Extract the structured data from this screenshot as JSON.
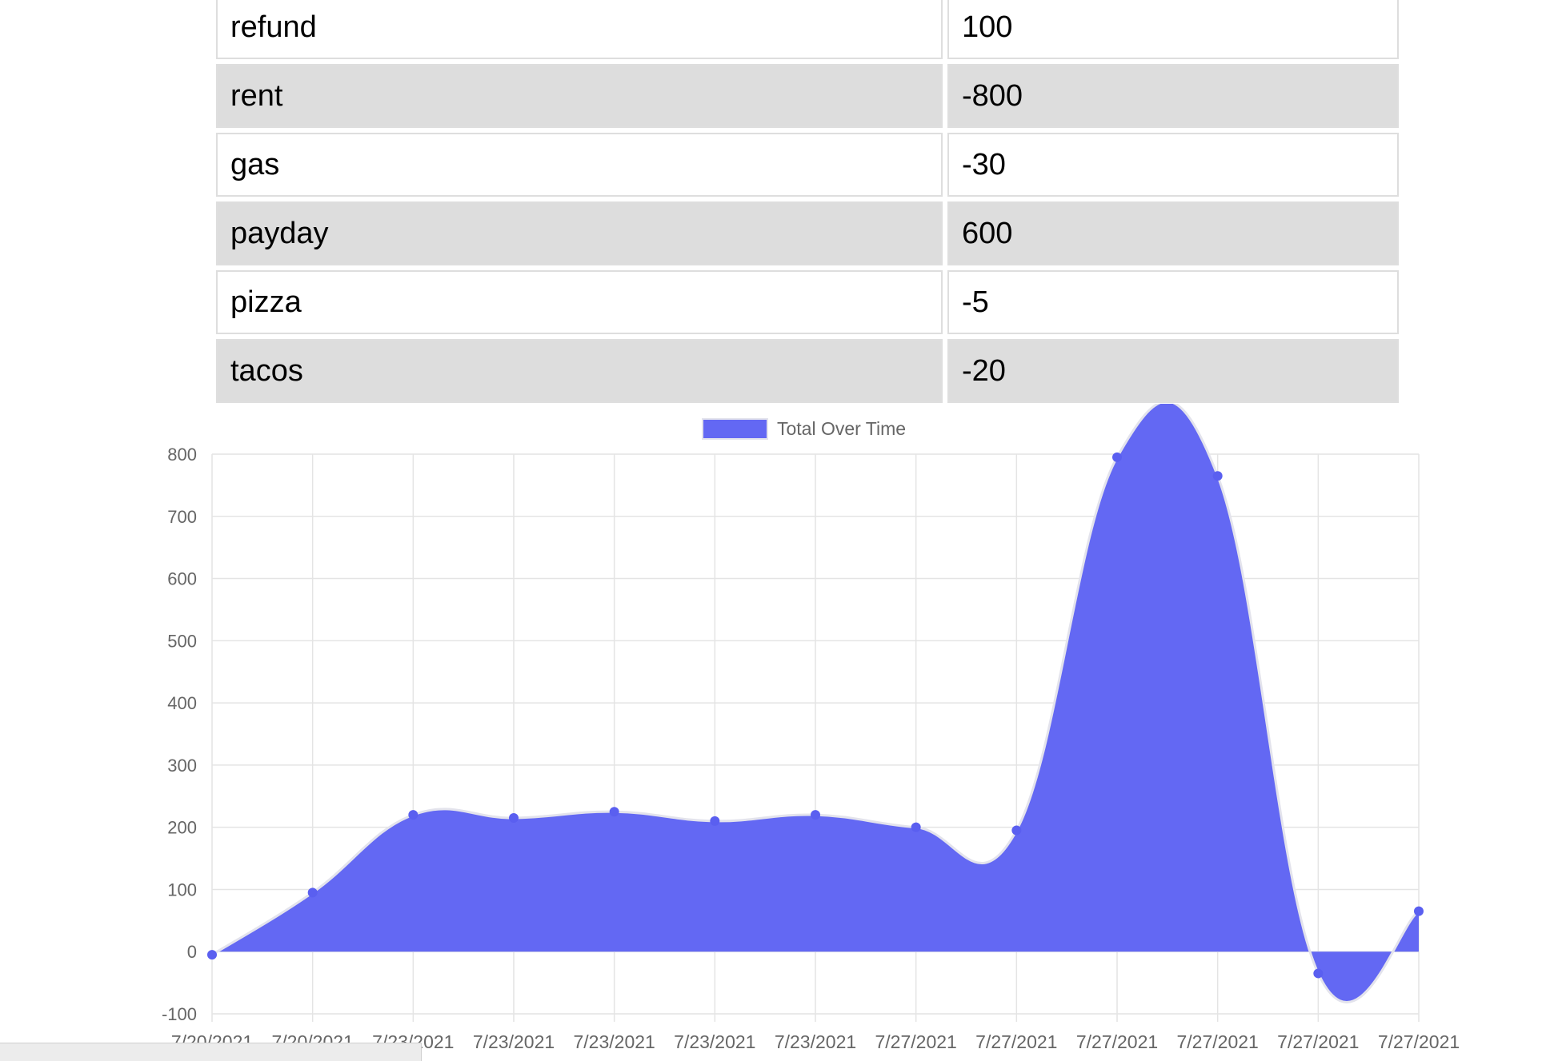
{
  "transactions": [
    {
      "name": "refund",
      "value": "100"
    },
    {
      "name": "rent",
      "value": "-800"
    },
    {
      "name": "gas",
      "value": "-30"
    },
    {
      "name": "payday",
      "value": "600"
    },
    {
      "name": "pizza",
      "value": "-5"
    },
    {
      "name": "tacos",
      "value": "-20"
    }
  ],
  "colors": {
    "area_fill": "#6368f3",
    "line": "#e3e3ec",
    "point": "#5a5ff0",
    "grid": "#e4e4e4",
    "axis_text": "#666666",
    "row_alt": "#dddddd"
  },
  "chart_data": {
    "type": "area",
    "legend": "Total Over Time",
    "legend_position": "top",
    "grid": true,
    "x": [
      "7/20/2021",
      "7/20/2021",
      "7/23/2021",
      "7/23/2021",
      "7/23/2021",
      "7/23/2021",
      "7/23/2021",
      "7/27/2021",
      "7/27/2021",
      "7/27/2021",
      "7/27/2021",
      "7/27/2021",
      "7/27/2021"
    ],
    "series": [
      {
        "name": "Total Over Time",
        "values": [
          -5,
          95,
          220,
          215,
          225,
          210,
          220,
          200,
          195,
          795,
          765,
          -35,
          65
        ]
      }
    ],
    "ylim": [
      -100,
      800
    ],
    "yticks": [
      -100,
      0,
      100,
      200,
      300,
      400,
      500,
      600,
      700,
      800
    ]
  }
}
